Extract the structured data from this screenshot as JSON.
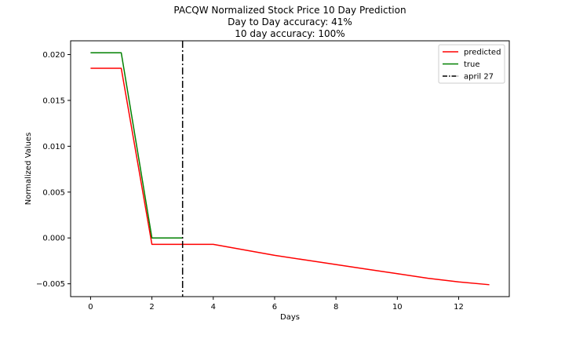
{
  "chart_data": {
    "type": "line",
    "title": [
      "PACQW Normalized Stock Price 10 Day Prediction",
      "Day to Day accuracy: 41%",
      "10 day accuracy: 100%"
    ],
    "xlabel": "Days",
    "ylabel": "Normalized Values",
    "xlim": [
      -0.65,
      13.65
    ],
    "ylim": [
      -0.0064,
      0.0215
    ],
    "xticks": [
      0,
      2,
      4,
      6,
      8,
      10,
      12
    ],
    "xtick_labels": [
      "0",
      "2",
      "4",
      "6",
      "8",
      "10",
      "12"
    ],
    "yticks": [
      -0.005,
      0.0,
      0.005,
      0.01,
      0.015,
      0.02
    ],
    "ytick_labels": [
      "−0.005",
      "0.000",
      "0.005",
      "0.010",
      "0.015",
      "0.020"
    ],
    "grid": false,
    "legend_position": "top-right",
    "series": [
      {
        "name": "predicted",
        "color": "#ff0000",
        "x": [
          0,
          1,
          2,
          3,
          4,
          5,
          6,
          7,
          8,
          9,
          10,
          11,
          12,
          13
        ],
        "y": [
          0.0185,
          0.0185,
          -0.0007,
          -0.0007,
          -0.0007,
          -0.0013,
          -0.0019,
          -0.0024,
          -0.0029,
          -0.0034,
          -0.0039,
          -0.0044,
          -0.0048,
          -0.0051
        ]
      },
      {
        "name": "true",
        "color": "#008000",
        "x": [
          0,
          1,
          2,
          3
        ],
        "y": [
          0.0202,
          0.0202,
          0.0,
          0.0
        ]
      }
    ],
    "vlines": [
      {
        "name": "april 27",
        "x": 3,
        "color": "#000000",
        "style": "dashdot"
      }
    ]
  }
}
